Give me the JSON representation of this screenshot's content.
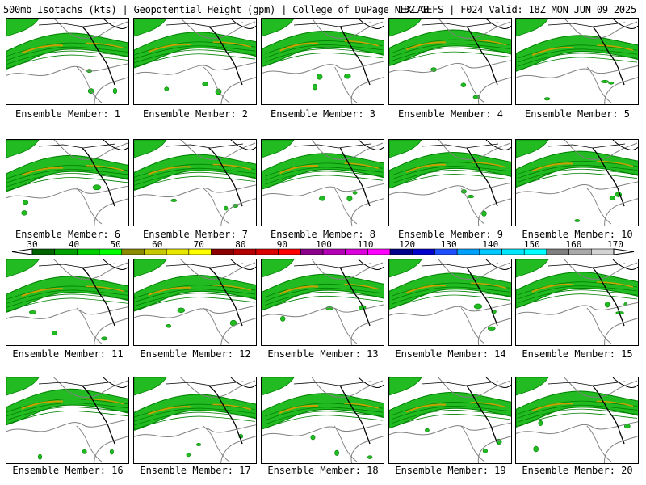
{
  "header": {
    "left": "500mb Isotachs (kts) | Geopotential Height (gpm) | College of DuPage NEXLAB",
    "right": "18Z GEFS | F024 Valid: 18Z MON JUN 09 2025"
  },
  "caption_prefix": "Ensemble Member:",
  "members": [
    {
      "label": "Ensemble Member: 1"
    },
    {
      "label": "Ensemble Member: 2"
    },
    {
      "label": "Ensemble Member: 3"
    },
    {
      "label": "Ensemble Member: 4"
    },
    {
      "label": "Ensemble Member: 5"
    },
    {
      "label": "Ensemble Member: 6"
    },
    {
      "label": "Ensemble Member: 7"
    },
    {
      "label": "Ensemble Member: 8"
    },
    {
      "label": "Ensemble Member: 9"
    },
    {
      "label": "Ensemble Member: 10"
    },
    {
      "label": "Ensemble Member: 11"
    },
    {
      "label": "Ensemble Member: 12"
    },
    {
      "label": "Ensemble Member: 13"
    },
    {
      "label": "Ensemble Member: 14"
    },
    {
      "label": "Ensemble Member: 15"
    },
    {
      "label": "Ensemble Member: 16"
    },
    {
      "label": "Ensemble Member: 17"
    },
    {
      "label": "Ensemble Member: 18"
    },
    {
      "label": "Ensemble Member: 19"
    },
    {
      "label": "Ensemble Member: 20"
    }
  ],
  "colorbar": {
    "labels": [
      "30",
      "40",
      "50",
      "60",
      "70",
      "80",
      "90",
      "100",
      "110",
      "120",
      "130",
      "140",
      "150",
      "160",
      "170"
    ],
    "colors": [
      "#006400",
      "#00a000",
      "#00d000",
      "#00ff00",
      "#8b8b00",
      "#c8c800",
      "#e6e600",
      "#ffff00",
      "#8b0000",
      "#b40000",
      "#dc0000",
      "#ff0000",
      "#8b008b",
      "#b400b4",
      "#dc00dc",
      "#ff00ff",
      "#00008b",
      "#0000cd",
      "#1e50ff",
      "#00a0ff",
      "#00c8ff",
      "#00e6ff",
      "#00ffff",
      "#808080",
      "#a9a9a9",
      "#d3d3d3"
    ]
  },
  "map_colors": {
    "jet_dark": "#008000",
    "jet_mid": "#22bb22",
    "jet_core": "#c8a000",
    "height_contour": "#808080",
    "boundaries": "#000000"
  }
}
